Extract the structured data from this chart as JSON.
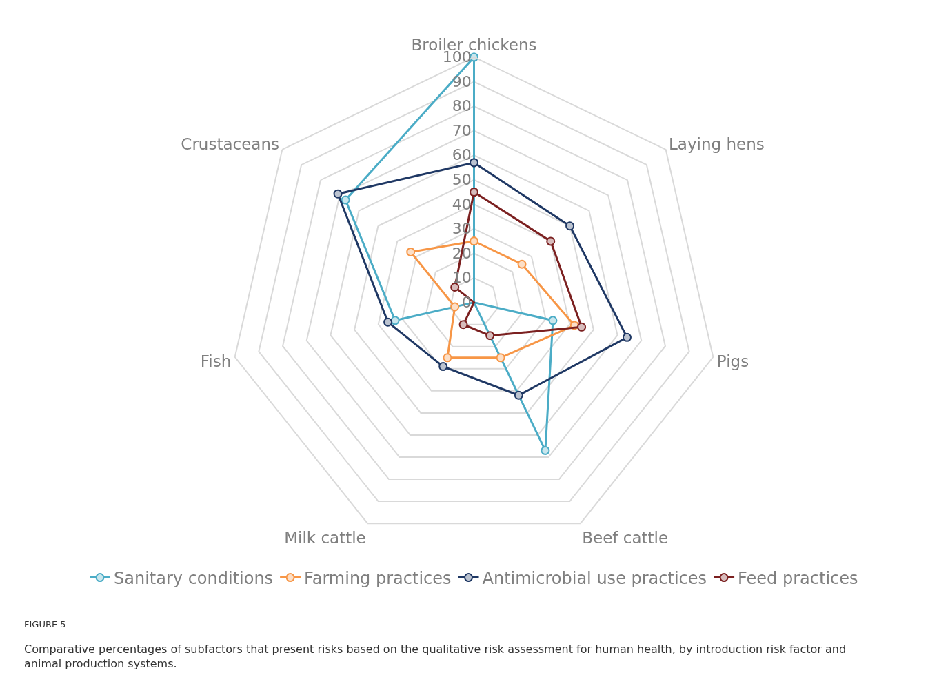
{
  "chart_data": {
    "type": "radar",
    "categories": [
      "Broiler chickens",
      "Laying hens",
      "Pigs",
      "Beef cattle",
      "Milk cattle",
      "Fish",
      "Crustaceans"
    ],
    "series": [
      {
        "name": "Sanitary conditions",
        "color": "#4bacc6",
        "values": [
          100,
          0,
          33,
          67,
          0,
          33,
          67
        ]
      },
      {
        "name": "Farming practices",
        "color": "#f79646",
        "values": [
          25,
          25,
          42,
          25,
          25,
          8,
          33
        ]
      },
      {
        "name": "Antimicrobial use practices",
        "color": "#1f3864",
        "values": [
          57,
          50,
          64,
          42,
          29,
          36,
          71
        ]
      },
      {
        "name": "Feed practices",
        "color": "#7b2020",
        "values": [
          45,
          40,
          45,
          15,
          10,
          0,
          10
        ]
      }
    ],
    "ylim": [
      0,
      100
    ],
    "yticks": [
      0,
      10,
      20,
      30,
      40,
      50,
      60,
      70,
      80,
      90,
      100
    ],
    "grid": true,
    "legend": "bottom",
    "marker": "circle",
    "line_style": "solid",
    "annotations": [
      "FIGURE 5",
      "Comparative percentages of subfactors that present risks based on the qualitative risk assessment for human health, by introduction risk factor and animal production systems."
    ]
  }
}
